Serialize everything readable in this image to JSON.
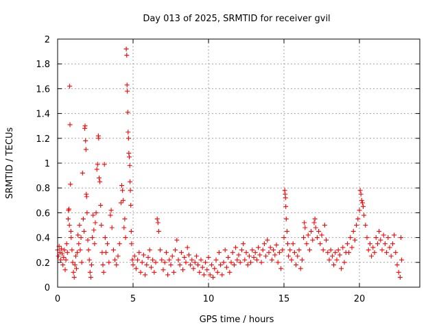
{
  "chart_data": {
    "type": "scatter",
    "title": "Day 013 of 2025, SRMTID for receiver gvil",
    "xlabel": "GPS time / hours",
    "ylabel": "SRMTID / TECUs",
    "xlim": [
      0,
      24
    ],
    "ylim": [
      0,
      2
    ],
    "xticks": [
      0,
      5,
      10,
      15,
      20
    ],
    "xtick_labels": [
      "0",
      "5",
      "10",
      "15",
      "20"
    ],
    "yticks": [
      0,
      0.2,
      0.4,
      0.6,
      0.8,
      1,
      1.2,
      1.4,
      1.6,
      1.8,
      2
    ],
    "ytick_labels": [
      "0",
      "0.2",
      "0.4",
      "0.6",
      "0.8",
      "1",
      "1.2",
      "1.4",
      "1.6",
      "1.8",
      "2"
    ],
    "grid": true,
    "marker": "+",
    "color": "#ff0000",
    "series": [
      {
        "name": "SRMTID",
        "points": [
          [
            0.0,
            0.3
          ],
          [
            0.05,
            0.25
          ],
          [
            0.1,
            0.33
          ],
          [
            0.15,
            0.28
          ],
          [
            0.2,
            0.22
          ],
          [
            0.25,
            0.31
          ],
          [
            0.3,
            0.27
          ],
          [
            0.35,
            0.18
          ],
          [
            0.4,
            0.24
          ],
          [
            0.45,
            0.3
          ],
          [
            0.5,
            0.14
          ],
          [
            0.55,
            0.22
          ],
          [
            0.6,
            0.35
          ],
          [
            0.65,
            0.28
          ],
          [
            0.7,
            0.55
          ],
          [
            0.72,
            0.62
          ],
          [
            0.75,
            0.63
          ],
          [
            0.78,
            0.5
          ],
          [
            0.8,
            1.62
          ],
          [
            0.82,
            1.31
          ],
          [
            0.85,
            0.83
          ],
          [
            0.88,
            0.45
          ],
          [
            0.9,
            0.4
          ],
          [
            0.95,
            0.3
          ],
          [
            1.0,
            0.2
          ],
          [
            1.05,
            0.12
          ],
          [
            1.1,
            0.08
          ],
          [
            1.15,
            0.18
          ],
          [
            1.2,
            0.25
          ],
          [
            1.25,
            0.15
          ],
          [
            1.3,
            0.28
          ],
          [
            1.35,
            0.42
          ],
          [
            1.4,
            0.35
          ],
          [
            1.45,
            0.5
          ],
          [
            1.5,
            0.3
          ],
          [
            1.55,
            0.4
          ],
          [
            1.6,
            0.2
          ],
          [
            1.65,
            0.92
          ],
          [
            1.7,
            0.55
          ],
          [
            1.75,
            0.45
          ],
          [
            1.8,
            1.28
          ],
          [
            1.82,
            1.3
          ],
          [
            1.85,
            1.18
          ],
          [
            1.88,
            1.11
          ],
          [
            1.9,
            0.75
          ],
          [
            1.92,
            0.73
          ],
          [
            1.95,
            0.6
          ],
          [
            2.0,
            0.38
          ],
          [
            2.05,
            0.3
          ],
          [
            2.1,
            0.22
          ],
          [
            2.15,
            0.12
          ],
          [
            2.2,
            0.08
          ],
          [
            2.25,
            0.18
          ],
          [
            2.3,
            0.4
          ],
          [
            2.35,
            0.58
          ],
          [
            2.4,
            0.46
          ],
          [
            2.45,
            0.35
          ],
          [
            2.5,
            0.52
          ],
          [
            2.55,
            0.6
          ],
          [
            2.6,
            0.95
          ],
          [
            2.65,
            0.99
          ],
          [
            2.7,
            1.22
          ],
          [
            2.72,
            1.2
          ],
          [
            2.75,
            0.88
          ],
          [
            2.8,
            0.85
          ],
          [
            2.85,
            0.66
          ],
          [
            2.9,
            0.5
          ],
          [
            2.95,
            0.28
          ],
          [
            3.0,
            0.18
          ],
          [
            3.05,
            0.12
          ],
          [
            3.1,
            0.99
          ],
          [
            3.15,
            0.4
          ],
          [
            3.2,
            0.28
          ],
          [
            3.3,
            0.35
          ],
          [
            3.4,
            0.2
          ],
          [
            3.5,
            0.58
          ],
          [
            3.55,
            0.62
          ],
          [
            3.6,
            0.48
          ],
          [
            3.7,
            0.3
          ],
          [
            3.8,
            0.22
          ],
          [
            3.9,
            0.18
          ],
          [
            4.0,
            0.25
          ],
          [
            4.1,
            0.35
          ],
          [
            4.2,
            0.68
          ],
          [
            4.25,
            0.82
          ],
          [
            4.3,
            0.78
          ],
          [
            4.35,
            0.7
          ],
          [
            4.4,
            0.48
          ],
          [
            4.45,
            0.55
          ],
          [
            4.5,
            0.4
          ],
          [
            4.55,
            1.92
          ],
          [
            4.58,
            1.87
          ],
          [
            4.6,
            1.63
          ],
          [
            4.62,
            1.58
          ],
          [
            4.65,
            1.41
          ],
          [
            4.67,
            1.25
          ],
          [
            4.7,
            1.2
          ],
          [
            4.72,
            1.08
          ],
          [
            4.75,
            1.05
          ],
          [
            4.78,
            0.98
          ],
          [
            4.8,
            0.85
          ],
          [
            4.82,
            0.78
          ],
          [
            4.85,
            0.66
          ],
          [
            4.88,
            0.45
          ],
          [
            4.9,
            0.35
          ],
          [
            4.95,
            0.22
          ],
          [
            5.0,
            0.18
          ],
          [
            5.1,
            0.25
          ],
          [
            5.2,
            0.15
          ],
          [
            5.3,
            0.22
          ],
          [
            5.4,
            0.28
          ],
          [
            5.5,
            0.12
          ],
          [
            5.6,
            0.2
          ],
          [
            5.7,
            0.26
          ],
          [
            5.8,
            0.1
          ],
          [
            5.9,
            0.18
          ],
          [
            6.0,
            0.24
          ],
          [
            6.1,
            0.3
          ],
          [
            6.2,
            0.16
          ],
          [
            6.3,
            0.22
          ],
          [
            6.4,
            0.12
          ],
          [
            6.5,
            0.2
          ],
          [
            6.6,
            0.55
          ],
          [
            6.65,
            0.52
          ],
          [
            6.7,
            0.45
          ],
          [
            6.8,
            0.3
          ],
          [
            6.9,
            0.22
          ],
          [
            7.0,
            0.14
          ],
          [
            7.1,
            0.2
          ],
          [
            7.2,
            0.28
          ],
          [
            7.3,
            0.1
          ],
          [
            7.4,
            0.22
          ],
          [
            7.5,
            0.18
          ],
          [
            7.6,
            0.25
          ],
          [
            7.7,
            0.12
          ],
          [
            7.8,
            0.3
          ],
          [
            7.9,
            0.38
          ],
          [
            8.0,
            0.22
          ],
          [
            8.1,
            0.18
          ],
          [
            8.2,
            0.28
          ],
          [
            8.3,
            0.14
          ],
          [
            8.4,
            0.24
          ],
          [
            8.5,
            0.2
          ],
          [
            8.6,
            0.32
          ],
          [
            8.7,
            0.26
          ],
          [
            8.8,
            0.18
          ],
          [
            8.9,
            0.22
          ],
          [
            9.0,
            0.15
          ],
          [
            9.1,
            0.2
          ],
          [
            9.2,
            0.25
          ],
          [
            9.3,
            0.18
          ],
          [
            9.4,
            0.12
          ],
          [
            9.5,
            0.22
          ],
          [
            9.6,
            0.16
          ],
          [
            9.7,
            0.1
          ],
          [
            9.8,
            0.2
          ],
          [
            9.9,
            0.14
          ],
          [
            10.0,
            0.24
          ],
          [
            10.1,
            0.1
          ],
          [
            10.2,
            0.18
          ],
          [
            10.3,
            0.08
          ],
          [
            10.4,
            0.15
          ],
          [
            10.5,
            0.22
          ],
          [
            10.6,
            0.12
          ],
          [
            10.7,
            0.28
          ],
          [
            10.8,
            0.18
          ],
          [
            10.9,
            0.1
          ],
          [
            11.0,
            0.2
          ],
          [
            11.1,
            0.3
          ],
          [
            11.2,
            0.16
          ],
          [
            11.3,
            0.24
          ],
          [
            11.4,
            0.12
          ],
          [
            11.5,
            0.2
          ],
          [
            11.6,
            0.28
          ],
          [
            11.7,
            0.18
          ],
          [
            11.8,
            0.32
          ],
          [
            11.9,
            0.22
          ],
          [
            12.0,
            0.26
          ],
          [
            12.1,
            0.2
          ],
          [
            12.2,
            0.3
          ],
          [
            12.3,
            0.35
          ],
          [
            12.4,
            0.22
          ],
          [
            12.5,
            0.28
          ],
          [
            12.6,
            0.18
          ],
          [
            12.7,
            0.25
          ],
          [
            12.8,
            0.2
          ],
          [
            12.9,
            0.3
          ],
          [
            13.0,
            0.24
          ],
          [
            13.1,
            0.28
          ],
          [
            13.2,
            0.22
          ],
          [
            13.3,
            0.32
          ],
          [
            13.4,
            0.26
          ],
          [
            13.5,
            0.2
          ],
          [
            13.6,
            0.3
          ],
          [
            13.7,
            0.35
          ],
          [
            13.8,
            0.25
          ],
          [
            13.9,
            0.38
          ],
          [
            14.0,
            0.28
          ],
          [
            14.1,
            0.32
          ],
          [
            14.2,
            0.22
          ],
          [
            14.3,
            0.3
          ],
          [
            14.4,
            0.26
          ],
          [
            14.5,
            0.34
          ],
          [
            14.6,
            0.2
          ],
          [
            14.7,
            0.28
          ],
          [
            14.8,
            0.15
          ],
          [
            14.9,
            0.3
          ],
          [
            15.0,
            0.4
          ],
          [
            15.05,
            0.78
          ],
          [
            15.08,
            0.75
          ],
          [
            15.1,
            0.72
          ],
          [
            15.12,
            0.65
          ],
          [
            15.15,
            0.55
          ],
          [
            15.2,
            0.45
          ],
          [
            15.25,
            0.35
          ],
          [
            15.3,
            0.25
          ],
          [
            15.4,
            0.3
          ],
          [
            15.5,
            0.22
          ],
          [
            15.6,
            0.35
          ],
          [
            15.7,
            0.28
          ],
          [
            15.8,
            0.18
          ],
          [
            15.9,
            0.25
          ],
          [
            16.0,
            0.3
          ],
          [
            16.1,
            0.15
          ],
          [
            16.2,
            0.22
          ],
          [
            16.3,
            0.4
          ],
          [
            16.35,
            0.52
          ],
          [
            16.4,
            0.48
          ],
          [
            16.5,
            0.35
          ],
          [
            16.6,
            0.42
          ],
          [
            16.7,
            0.3
          ],
          [
            16.8,
            0.45
          ],
          [
            16.9,
            0.38
          ],
          [
            17.0,
            0.52
          ],
          [
            17.05,
            0.55
          ],
          [
            17.1,
            0.48
          ],
          [
            17.2,
            0.4
          ],
          [
            17.3,
            0.45
          ],
          [
            17.4,
            0.35
          ],
          [
            17.5,
            0.42
          ],
          [
            17.6,
            0.3
          ],
          [
            17.7,
            0.5
          ],
          [
            17.8,
            0.38
          ],
          [
            17.9,
            0.28
          ],
          [
            18.0,
            0.22
          ],
          [
            18.1,
            0.3
          ],
          [
            18.2,
            0.25
          ],
          [
            18.3,
            0.18
          ],
          [
            18.4,
            0.28
          ],
          [
            18.5,
            0.22
          ],
          [
            18.6,
            0.3
          ],
          [
            18.7,
            0.26
          ],
          [
            18.8,
            0.15
          ],
          [
            18.9,
            0.32
          ],
          [
            19.0,
            0.2
          ],
          [
            19.1,
            0.28
          ],
          [
            19.2,
            0.35
          ],
          [
            19.3,
            0.28
          ],
          [
            19.4,
            0.4
          ],
          [
            19.5,
            0.32
          ],
          [
            19.6,
            0.45
          ],
          [
            19.7,
            0.38
          ],
          [
            19.8,
            0.5
          ],
          [
            19.9,
            0.55
          ],
          [
            20.0,
            0.62
          ],
          [
            20.05,
            0.78
          ],
          [
            20.1,
            0.75
          ],
          [
            20.15,
            0.7
          ],
          [
            20.2,
            0.68
          ],
          [
            20.25,
            0.65
          ],
          [
            20.3,
            0.58
          ],
          [
            20.4,
            0.5
          ],
          [
            20.5,
            0.4
          ],
          [
            20.6,
            0.3
          ],
          [
            20.7,
            0.35
          ],
          [
            20.8,
            0.25
          ],
          [
            20.9,
            0.32
          ],
          [
            21.0,
            0.28
          ],
          [
            21.1,
            0.4
          ],
          [
            21.2,
            0.35
          ],
          [
            21.3,
            0.45
          ],
          [
            21.4,
            0.38
          ],
          [
            21.5,
            0.3
          ],
          [
            21.6,
            0.42
          ],
          [
            21.7,
            0.35
          ],
          [
            21.8,
            0.28
          ],
          [
            21.9,
            0.4
          ],
          [
            22.0,
            0.32
          ],
          [
            22.1,
            0.25
          ],
          [
            22.2,
            0.35
          ],
          [
            22.3,
            0.42
          ],
          [
            22.4,
            0.28
          ],
          [
            22.5,
            0.18
          ],
          [
            22.6,
            0.12
          ],
          [
            22.7,
            0.08
          ],
          [
            22.75,
            0.4
          ],
          [
            22.8,
            0.22
          ]
        ]
      }
    ]
  }
}
